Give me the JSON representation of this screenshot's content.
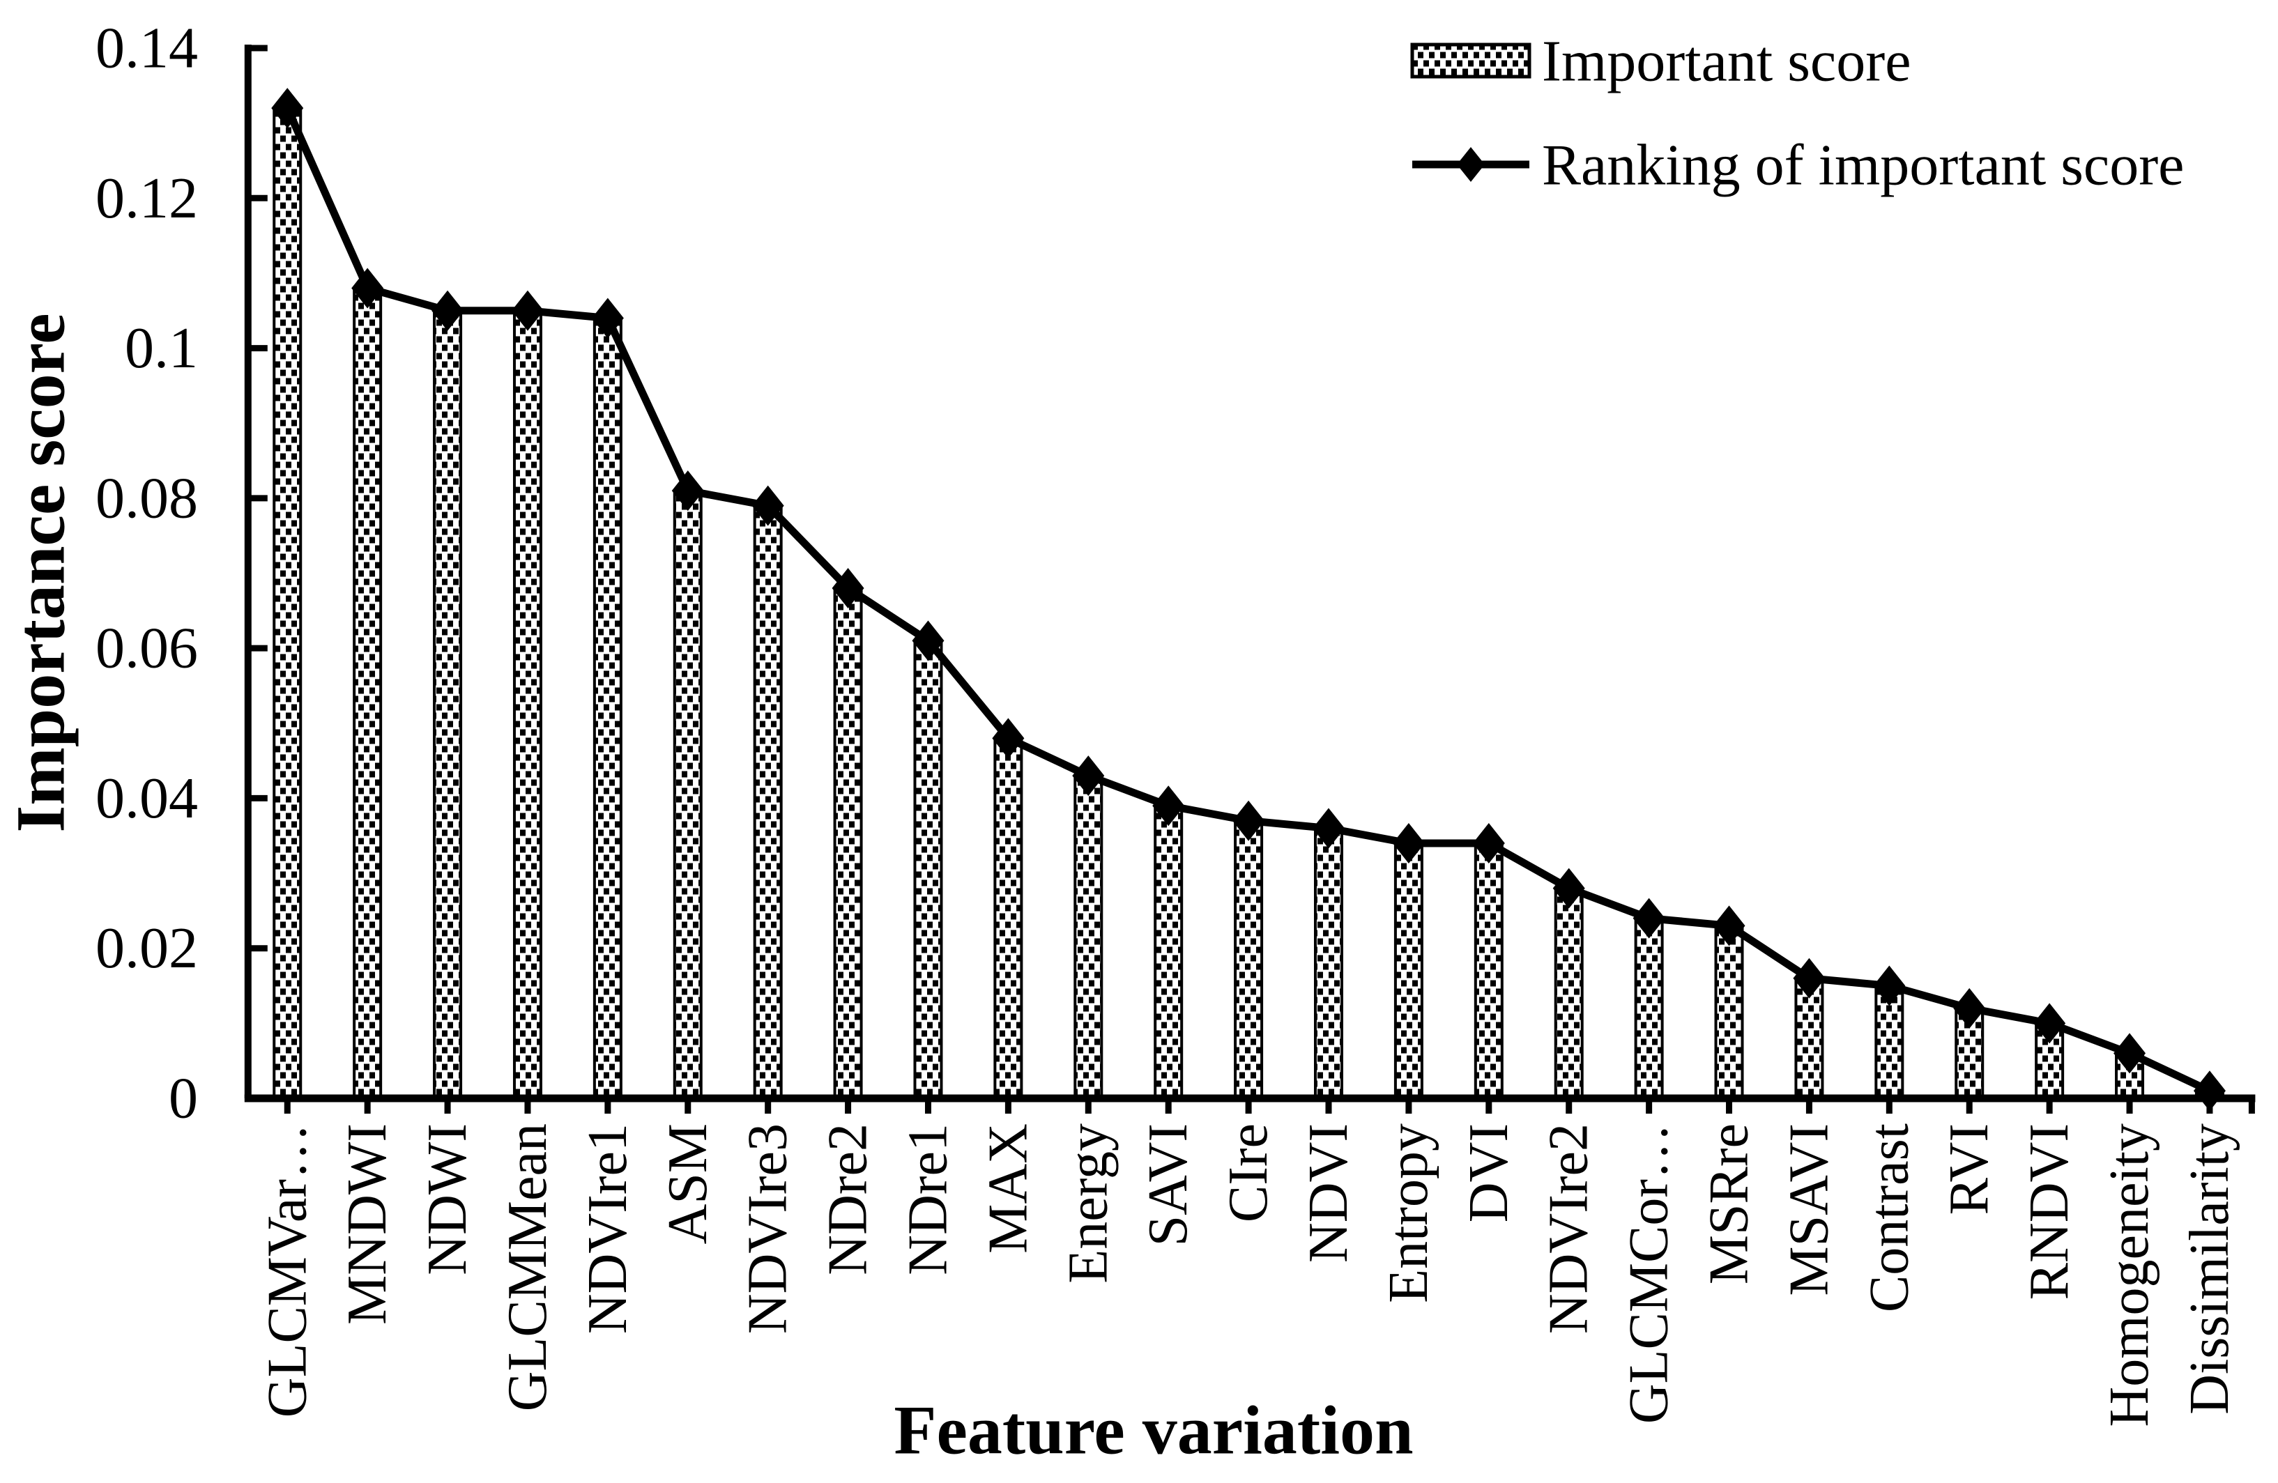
{
  "figure": {
    "background": "#ffffff",
    "ink": "#000000"
  },
  "chart_data": {
    "type": "bar+line",
    "title": "",
    "xlabel": "Feature variation",
    "ylabel": "Importance score",
    "ylim": [
      0,
      0.14
    ],
    "yticks": [
      0,
      0.02,
      0.04,
      0.06,
      0.08,
      0.1,
      0.12,
      0.14
    ],
    "ytick_labels": [
      "0",
      "0.02",
      "0.04",
      "0.06",
      "0.08",
      "0.1",
      "0.12",
      "0.14"
    ],
    "grid": false,
    "legend_position": "top-right",
    "categories": [
      "GLCMVar…",
      "MNDWI",
      "NDWI",
      "GLCMMean",
      "NDVIre1",
      "ASM",
      "NDVIre3",
      "NDre2",
      "NDre1",
      "MAX",
      "Energy",
      "SAVI",
      "CIre",
      "NDVI",
      "Entropy",
      "DVI",
      "NDVIre2",
      "GLCMCor…",
      "MSRre",
      "MSAVI",
      "Contrast",
      "RVI",
      "RNDVI",
      "Homogeneity",
      "Dissimilarity"
    ],
    "series": [
      {
        "name": "Important score",
        "type": "bar",
        "style": "dotted-pattern",
        "fill": "#ffffff",
        "pattern_color": "#000000",
        "values": [
          0.132,
          0.108,
          0.105,
          0.105,
          0.104,
          0.081,
          0.079,
          0.068,
          0.061,
          0.048,
          0.043,
          0.039,
          0.037,
          0.036,
          0.034,
          0.034,
          0.028,
          0.024,
          0.023,
          0.016,
          0.015,
          0.012,
          0.01,
          0.006,
          0.001
        ]
      },
      {
        "name": "Ranking of important score",
        "type": "line",
        "marker": "diamond",
        "color": "#000000",
        "values": [
          0.132,
          0.108,
          0.105,
          0.105,
          0.104,
          0.081,
          0.079,
          0.068,
          0.061,
          0.048,
          0.043,
          0.039,
          0.037,
          0.036,
          0.034,
          0.034,
          0.028,
          0.024,
          0.023,
          0.016,
          0.015,
          0.012,
          0.01,
          0.006,
          0.001
        ]
      }
    ]
  }
}
